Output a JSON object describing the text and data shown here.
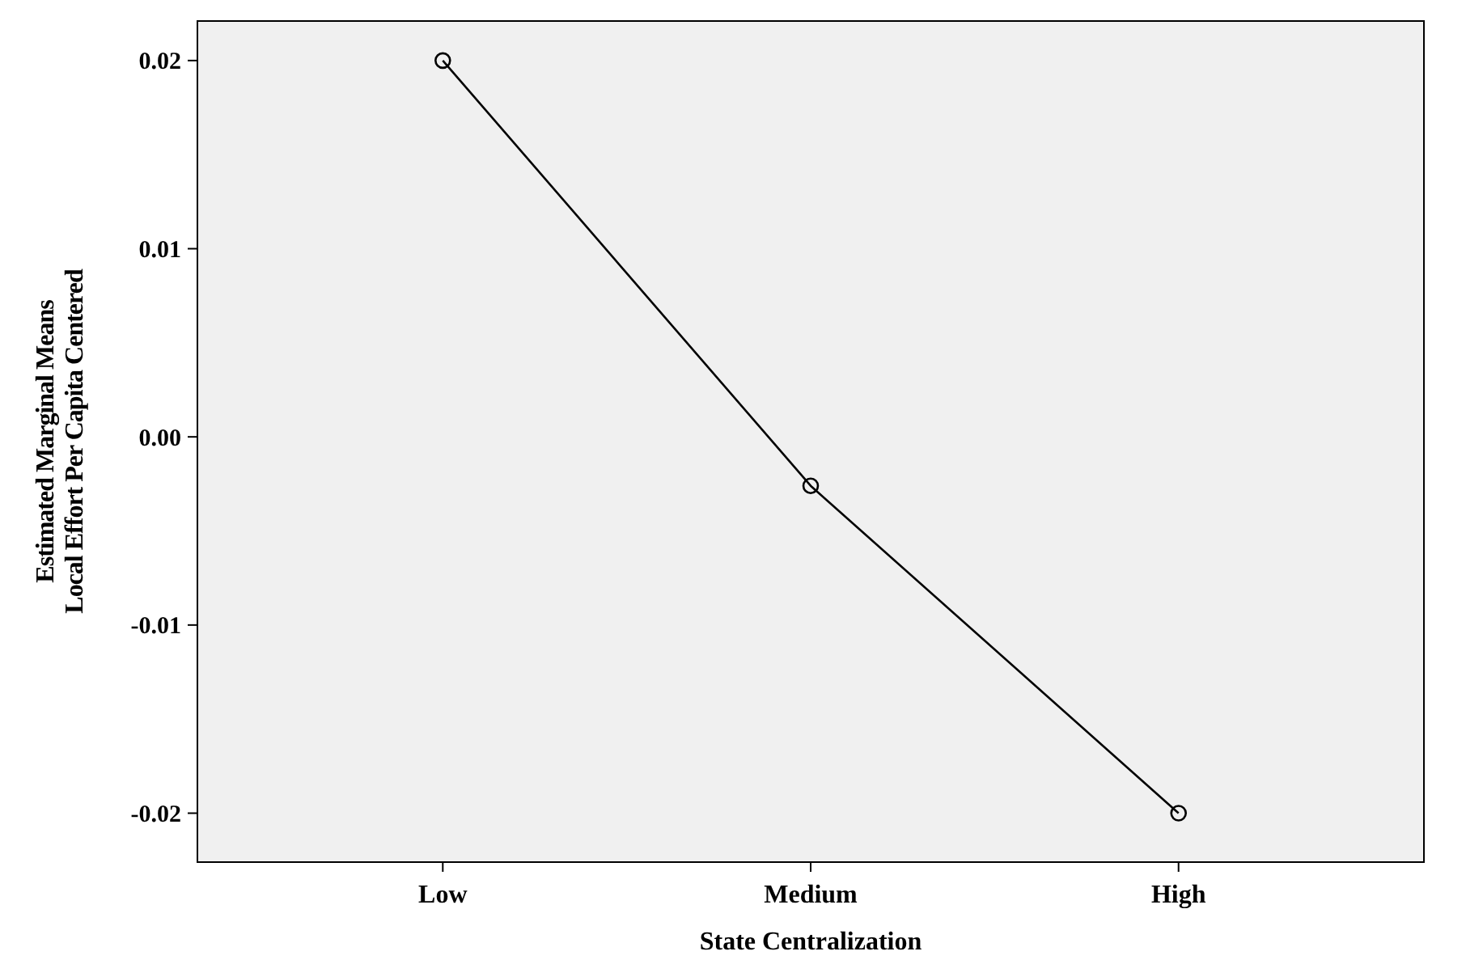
{
  "chart_data": {
    "type": "line",
    "xlabel": "State Centralization",
    "ylabel": "Estimated Marginal Means\nLocal Effort Per Capita Centered",
    "categories": [
      "Low",
      "Medium",
      "High"
    ],
    "series": [
      {
        "color": "#000000",
        "values": [
          0.02,
          -0.0026,
          -0.02
        ]
      }
    ],
    "ylim": [
      -0.0226,
      0.0221
    ],
    "yticks": [
      -0.02,
      -0.01,
      {
        "value": 0,
        "label": "0.00"
      },
      0.01,
      0.02
    ],
    "marker": "circle",
    "line_style": "solid"
  }
}
